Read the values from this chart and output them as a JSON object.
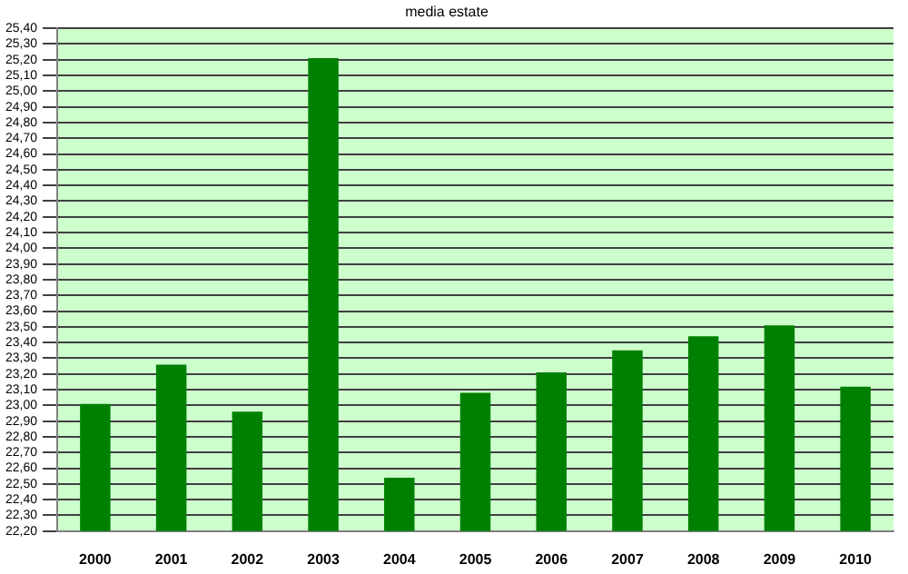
{
  "chart_data": {
    "type": "bar",
    "title": "media estate",
    "categories": [
      "2000",
      "2001",
      "2002",
      "2003",
      "2004",
      "2005",
      "2006",
      "2007",
      "2008",
      "2009",
      "2010"
    ],
    "values": [
      23.01,
      23.26,
      22.96,
      25.21,
      22.54,
      23.08,
      23.21,
      23.35,
      23.44,
      23.51,
      23.12
    ],
    "color": "#008000",
    "ylim": [
      22.2,
      25.4
    ],
    "yticks": [
      {
        "value": 22.2,
        "label": "22,20"
      },
      {
        "value": 22.3,
        "label": "22,30"
      },
      {
        "value": 22.4,
        "label": "22,40"
      },
      {
        "value": 22.5,
        "label": "22,50"
      },
      {
        "value": 22.6,
        "label": "22,60"
      },
      {
        "value": 22.7,
        "label": "22,70"
      },
      {
        "value": 22.8,
        "label": "22,80"
      },
      {
        "value": 22.9,
        "label": "22,90"
      },
      {
        "value": 23.0,
        "label": "23,00"
      },
      {
        "value": 23.1,
        "label": "23,10"
      },
      {
        "value": 23.2,
        "label": "23,20"
      },
      {
        "value": 23.3,
        "label": "23,30"
      },
      {
        "value": 23.4,
        "label": "23,40"
      },
      {
        "value": 23.5,
        "label": "23,50"
      },
      {
        "value": 23.6,
        "label": "23,60"
      },
      {
        "value": 23.7,
        "label": "23,70"
      },
      {
        "value": 23.8,
        "label": "23,80"
      },
      {
        "value": 23.9,
        "label": "23,90"
      },
      {
        "value": 24.0,
        "label": "24,00"
      },
      {
        "value": 24.1,
        "label": "24,10"
      },
      {
        "value": 24.2,
        "label": "24,20"
      },
      {
        "value": 24.3,
        "label": "24,30"
      },
      {
        "value": 24.4,
        "label": "24,40"
      },
      {
        "value": 24.5,
        "label": "24,50"
      },
      {
        "value": 24.6,
        "label": "24,60"
      },
      {
        "value": 24.7,
        "label": "24,70"
      },
      {
        "value": 24.8,
        "label": "24,80"
      },
      {
        "value": 24.9,
        "label": "24,90"
      },
      {
        "value": 25.0,
        "label": "25,00"
      },
      {
        "value": 25.1,
        "label": "25,10"
      },
      {
        "value": 25.2,
        "label": "25,20"
      },
      {
        "value": 25.3,
        "label": "25,30"
      },
      {
        "value": 25.4,
        "label": "25,40"
      }
    ],
    "grid": "y",
    "legend": false
  }
}
